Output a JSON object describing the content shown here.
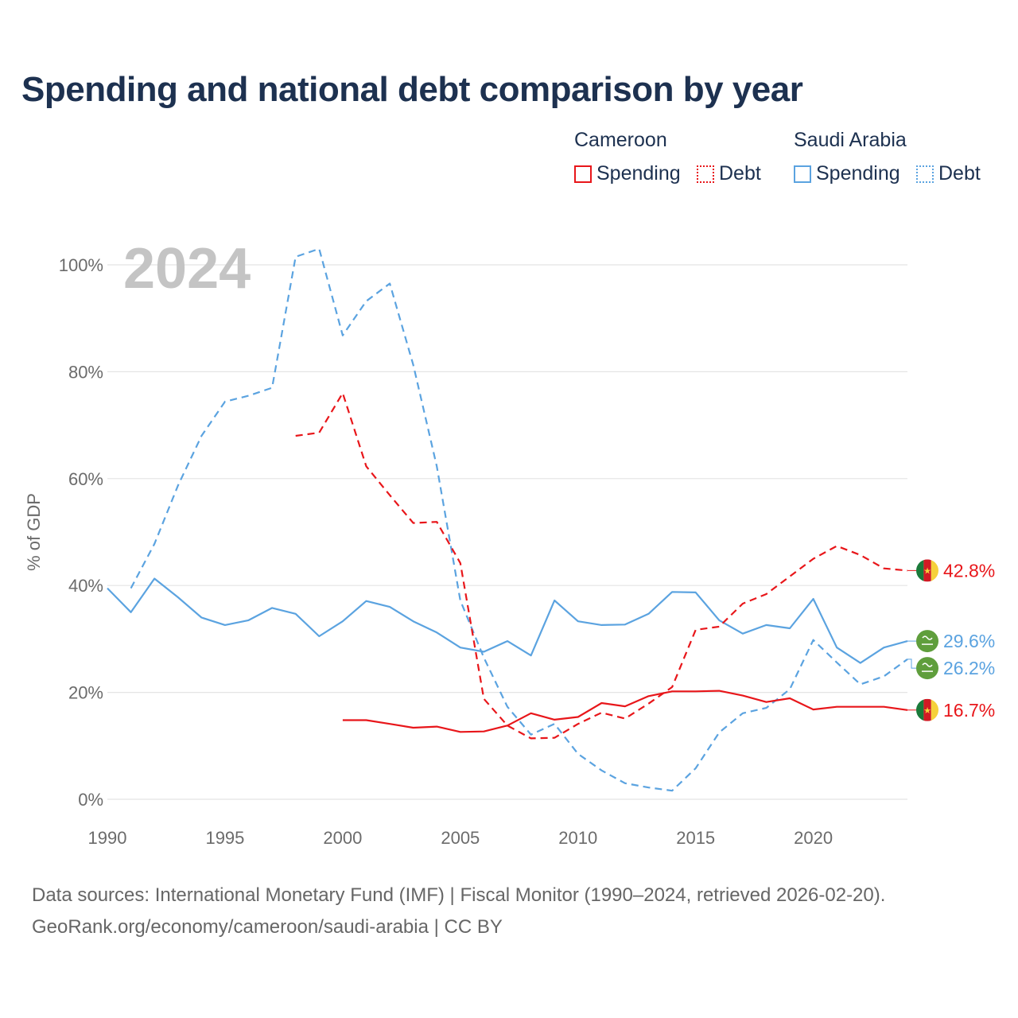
{
  "title": "Spending and national debt comparison by year",
  "legend": {
    "groups": [
      {
        "country": "Cameroon",
        "items": [
          {
            "label": "Spending",
            "style": "solid",
            "color": "#e8161a"
          },
          {
            "label": "Debt",
            "style": "dotted",
            "color": "#e8161a"
          }
        ]
      },
      {
        "country": "Saudi Arabia",
        "items": [
          {
            "label": "Spending",
            "style": "solid",
            "color": "#5ba3e0"
          },
          {
            "label": "Debt",
            "style": "dotted",
            "color": "#5ba3e0"
          }
        ]
      }
    ]
  },
  "year_label": "2024",
  "chart_data": {
    "type": "line",
    "title": "Spending and national debt comparison by year",
    "ylabel": "% of GDP",
    "xlabel": "",
    "xlim": [
      1990,
      2024
    ],
    "ylim": [
      0,
      100
    ],
    "x_ticks": [
      1990,
      1995,
      2000,
      2005,
      2010,
      2015,
      2020
    ],
    "y_ticks": [
      0,
      20,
      40,
      60,
      80,
      100
    ],
    "y_tick_labels": [
      "0%",
      "20%",
      "40%",
      "60%",
      "80%",
      "100%"
    ],
    "grid": true,
    "series": [
      {
        "name": "Saudi Arabia Spending",
        "country": "Saudi Arabia",
        "metric": "Spending",
        "color": "#5ba3e0",
        "dashed": false,
        "x": [
          1990,
          1991,
          1992,
          1993,
          1994,
          1995,
          1996,
          1997,
          1998,
          1999,
          2000,
          2001,
          2002,
          2003,
          2004,
          2005,
          2006,
          2007,
          2008,
          2009,
          2010,
          2011,
          2012,
          2013,
          2014,
          2015,
          2016,
          2017,
          2018,
          2019,
          2020,
          2021,
          2022,
          2023,
          2024
        ],
        "values": [
          39.5,
          35.0,
          41.3,
          37.8,
          34.0,
          32.6,
          33.5,
          35.8,
          34.7,
          30.5,
          33.3,
          37.1,
          36.0,
          33.3,
          31.2,
          28.4,
          27.6,
          29.6,
          26.9,
          37.2,
          33.3,
          32.6,
          32.7,
          34.7,
          38.8,
          38.7,
          33.5,
          31.0,
          32.6,
          32.0,
          37.5,
          28.4,
          25.5,
          28.4,
          29.6
        ],
        "end_label": "29.6%"
      },
      {
        "name": "Saudi Arabia Debt",
        "country": "Saudi Arabia",
        "metric": "Debt",
        "color": "#5ba3e0",
        "dashed": true,
        "x": [
          1991,
          1992,
          1993,
          1994,
          1995,
          1996,
          1997,
          1998,
          1999,
          2000,
          2001,
          2002,
          2003,
          2004,
          2005,
          2006,
          2007,
          2008,
          2009,
          2010,
          2011,
          2012,
          2013,
          2014,
          2015,
          2016,
          2017,
          2018,
          2019,
          2020,
          2021,
          2022,
          2023,
          2024
        ],
        "values": [
          39.5,
          47.8,
          58.7,
          68.0,
          74.4,
          75.5,
          77.0,
          101.5,
          103.0,
          86.8,
          93.2,
          96.5,
          81.3,
          62.3,
          37.2,
          26.5,
          17.3,
          12.1,
          14.1,
          8.5,
          5.4,
          3.0,
          2.2,
          1.6,
          5.8,
          12.5,
          16.1,
          17.1,
          20.6,
          29.8,
          25.6,
          21.5,
          23.0,
          26.2
        ],
        "end_label": "26.2%"
      },
      {
        "name": "Cameroon Debt",
        "country": "Cameroon",
        "metric": "Debt",
        "color": "#e8161a",
        "dashed": true,
        "x": [
          1998,
          1999,
          2000,
          2001,
          2002,
          2003,
          2004,
          2005,
          2006,
          2007,
          2008,
          2009,
          2010,
          2011,
          2012,
          2013,
          2014,
          2015,
          2016,
          2017,
          2018,
          2019,
          2020,
          2021,
          2022,
          2023,
          2024
        ],
        "values": [
          68.0,
          68.6,
          76.0,
          62.3,
          56.9,
          51.7,
          51.9,
          44.2,
          18.8,
          13.8,
          11.4,
          11.5,
          14.1,
          16.2,
          15.1,
          17.9,
          21.0,
          31.7,
          32.3,
          36.6,
          38.4,
          41.7,
          45.0,
          47.4,
          45.7,
          43.2,
          42.8
        ],
        "end_label": "42.8%"
      },
      {
        "name": "Cameroon Spending",
        "country": "Cameroon",
        "metric": "Spending",
        "color": "#e8161a",
        "dashed": false,
        "x": [
          2000,
          2001,
          2002,
          2003,
          2004,
          2005,
          2006,
          2007,
          2008,
          2009,
          2010,
          2011,
          2012,
          2013,
          2014,
          2015,
          2016,
          2017,
          2018,
          2019,
          2020,
          2021,
          2022,
          2023,
          2024
        ],
        "values": [
          14.8,
          14.8,
          14.1,
          13.4,
          13.6,
          12.6,
          12.7,
          13.8,
          16.1,
          14.9,
          15.4,
          18.0,
          17.4,
          19.3,
          20.2,
          20.2,
          20.3,
          19.4,
          18.2,
          18.9,
          16.8,
          17.3,
          17.3,
          17.3,
          16.7
        ],
        "end_label": "16.7%"
      }
    ]
  },
  "footer": {
    "line1": "Data sources: International Monetary Fund (IMF) | Fiscal Monitor (1990–2024, retrieved 2026-02-20).",
    "line2": "GeoRank.org/economy/cameroon/saudi-arabia | CC BY"
  }
}
